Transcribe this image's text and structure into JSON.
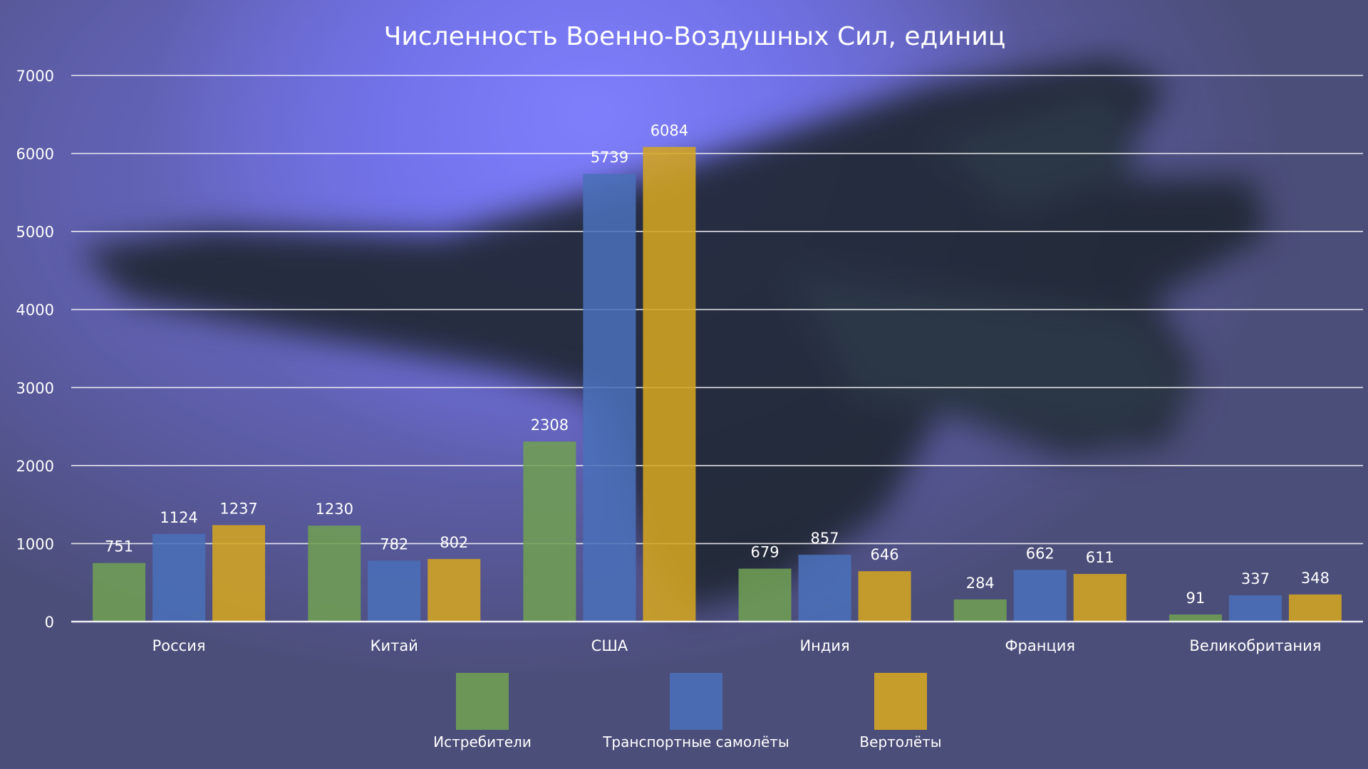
{
  "chart_data": {
    "type": "bar",
    "title": "Численность Военно-Воздушных Сил, единиц",
    "xlabel": "",
    "ylabel": "",
    "ylim": [
      0,
      7000
    ],
    "yticks": [
      0,
      1000,
      2000,
      3000,
      4000,
      5000,
      6000,
      7000
    ],
    "grid": true,
    "legend_position": "bottom",
    "categories": [
      "Россия",
      "Китай",
      "США",
      "Индия",
      "Франция",
      "Великобритания"
    ],
    "series": [
      {
        "name": "Истребители",
        "color": "#6f9e54",
        "values": [
          751,
          1230,
          2308,
          679,
          284,
          91
        ]
      },
      {
        "name": "Транспортные самолёты",
        "color": "#4a6fb8",
        "values": [
          1124,
          782,
          5739,
          857,
          662,
          337
        ]
      },
      {
        "name": "Вертолёты",
        "color": "#d4a521",
        "values": [
          1237,
          802,
          6084,
          646,
          611,
          348
        ]
      }
    ]
  }
}
